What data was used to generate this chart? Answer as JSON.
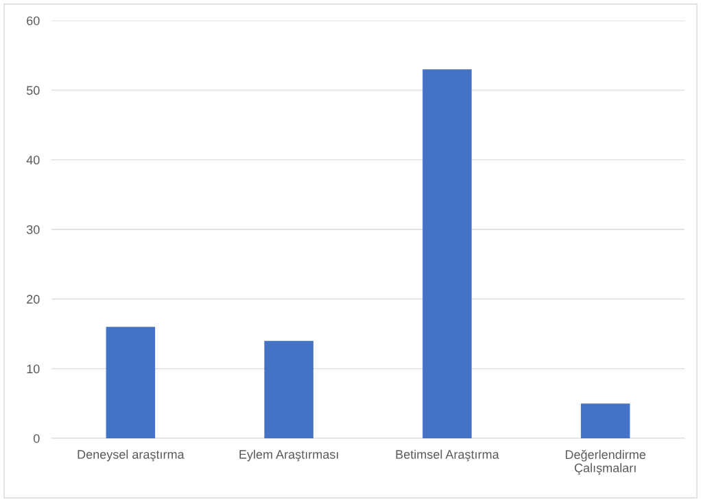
{
  "chart_data": {
    "type": "bar",
    "categories": [
      "Deneysel araştırma",
      "Eylem Araştırması",
      "Betimsel Araştırma",
      "Değerlendirme Çalışmaları"
    ],
    "values": [
      16,
      14,
      53,
      5
    ],
    "color": "#4472c4",
    "ylim": [
      0,
      60
    ],
    "yticks": [
      0,
      10,
      20,
      30,
      40,
      50,
      60
    ],
    "grid": "y",
    "legend": false
  }
}
